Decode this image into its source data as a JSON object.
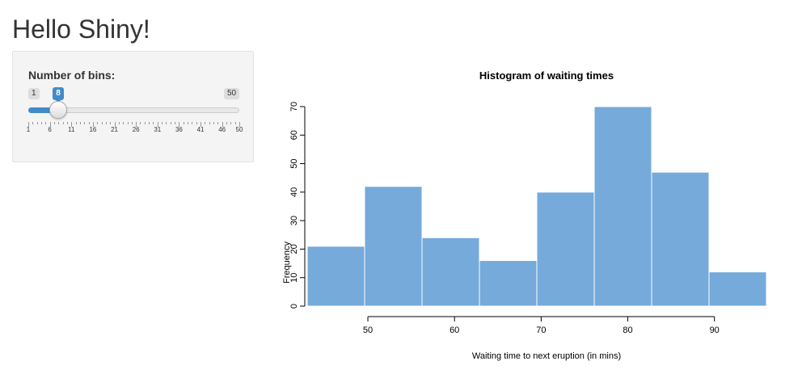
{
  "page": {
    "title": "Hello Shiny!"
  },
  "slider": {
    "label": "Number of bins:",
    "min": 1,
    "max": 50,
    "value": 8,
    "min_label": "1",
    "max_label": "50",
    "value_label": "8",
    "tick_labels": [
      "1",
      "6",
      "11",
      "16",
      "21",
      "26",
      "31",
      "36",
      "41",
      "46",
      "50"
    ],
    "accent_color": "#428bca"
  },
  "chart_data": {
    "type": "bar",
    "title": "Histogram of waiting times",
    "xlabel": "Waiting time to next eruption (in mins)",
    "ylabel": "Frequency",
    "bin_edges": [
      43.0,
      49.625,
      56.25,
      62.875,
      69.5,
      76.125,
      82.75,
      89.375,
      96.0
    ],
    "values": [
      21,
      42,
      24,
      16,
      40,
      70,
      47,
      12
    ],
    "xlim": [
      43,
      96
    ],
    "ylim": [
      0,
      70
    ],
    "x_ticks": [
      50,
      60,
      70,
      80,
      90
    ],
    "x_tick_labels": [
      "50",
      "60",
      "70",
      "80",
      "90"
    ],
    "y_ticks": [
      0,
      10,
      20,
      30,
      40,
      50,
      60,
      70
    ],
    "y_tick_labels": [
      "0",
      "10",
      "20",
      "30",
      "40",
      "50",
      "60",
      "70"
    ],
    "bar_color": "#75aadb",
    "bar_border_color": "#ffffff"
  }
}
